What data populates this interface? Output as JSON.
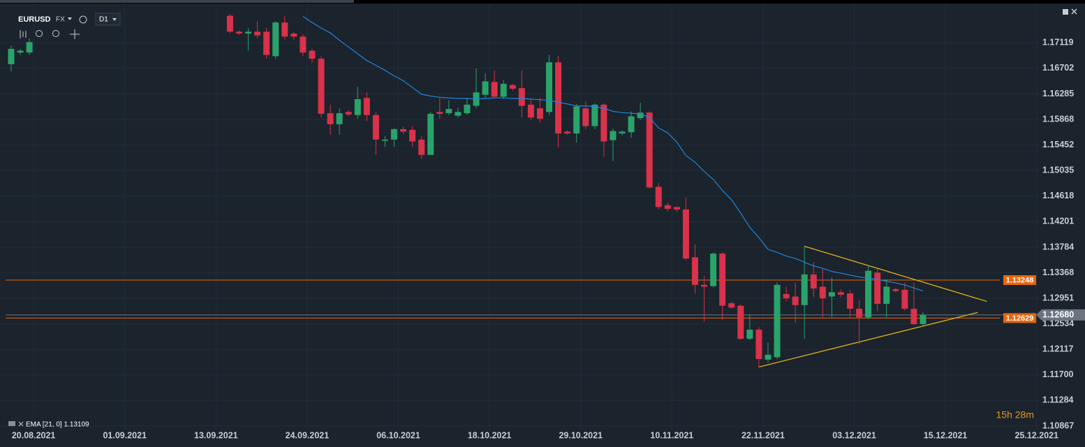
{
  "toolbar": {
    "symbol": "EURUSD",
    "market": "FX",
    "timeframe": "D1"
  },
  "chart_data": {
    "type": "candlestick",
    "categories": [
      null,
      null,
      "20.08.2021",
      null,
      null,
      null,
      null,
      null,
      null,
      null,
      null,
      null,
      "01.09.2021",
      null,
      null,
      null,
      null,
      null,
      null,
      null,
      null,
      null,
      "13.09.2021",
      null,
      null,
      null,
      null,
      null,
      null,
      null,
      null,
      null,
      "24.09.2021",
      null,
      null,
      null,
      null,
      null,
      null,
      null,
      null,
      null,
      "06.10.2021",
      null,
      null,
      null,
      null,
      null,
      null,
      null,
      null,
      null,
      "18.10.2021",
      null,
      null,
      null,
      null,
      null,
      null,
      null,
      null,
      null,
      "29.10.2021",
      null,
      null,
      null,
      null,
      null,
      null,
      null,
      null,
      null,
      "10.11.2021",
      null,
      null,
      null,
      null,
      null,
      null,
      null,
      null,
      null,
      "22.11.2021",
      null,
      null,
      null,
      null,
      null,
      null,
      null,
      null,
      null,
      "03.12.2021",
      null,
      null,
      null,
      null,
      null,
      null,
      null,
      null,
      null,
      "15.12.2021",
      null,
      null,
      null,
      null,
      null,
      null,
      null,
      null,
      null,
      "25.12.2021"
    ],
    "open": [
      1.1677,
      1.1696,
      1.1696,
      null,
      null,
      null,
      null,
      null,
      null,
      null,
      null,
      null,
      null,
      null,
      null,
      null,
      null,
      null,
      null,
      null,
      null,
      null,
      null,
      null,
      1.1756,
      1.173,
      1.1727,
      1.173,
      1.173,
      1.169,
      1.1745,
      1.1727,
      1.1722,
      1.1699,
      1.1686,
      1.1597,
      1.1579,
      1.1599,
      1.1594,
      1.1622,
      1.1594,
      1.1552,
      1.1554,
      1.1571,
      1.157,
      1.1554,
      1.1529,
      1.1599,
      1.1597,
      1.1593,
      1.1597,
      1.1609,
      1.1627,
      1.1648,
      1.1624,
      1.1643,
      1.1638,
      1.1611,
      1.1605,
      1.1599,
      1.168,
      1.1567,
      1.1564,
      1.1605,
      1.1576,
      1.1611,
      1.1553,
      1.1564,
      1.1566,
      1.1589,
      1.1598,
      1.1477,
      1.1447,
      1.1444,
      1.144,
      1.1362,
      1.1317,
      1.1315,
      1.1368,
      1.1287,
      1.1283,
      1.1229,
      1.1244,
      1.1195,
      1.1199,
      1.1302,
      1.1298,
      1.1284,
      1.1334,
      1.1314,
      1.1298,
      1.1305,
      1.1303,
      1.1278,
      1.1264,
      1.1337,
      1.1286,
      1.131,
      1.1309,
      1.1278,
      1.1253,
      null,
      null,
      null,
      null,
      null,
      null,
      null,
      null,
      null,
      null,
      null,
      null
    ],
    "high": [
      1.1707,
      1.1702,
      1.1719,
      null,
      null,
      null,
      null,
      null,
      null,
      null,
      null,
      null,
      null,
      null,
      null,
      null,
      null,
      null,
      null,
      null,
      null,
      null,
      null,
      null,
      1.1759,
      1.1732,
      1.1736,
      1.1747,
      1.1736,
      1.1747,
      1.1756,
      1.173,
      1.1726,
      1.1702,
      1.169,
      1.1611,
      1.1605,
      1.1602,
      1.164,
      1.1631,
      1.1599,
      1.156,
      1.1573,
      1.1575,
      1.1576,
      1.156,
      1.1599,
      1.1622,
      1.1618,
      1.1606,
      1.1622,
      1.167,
      1.1662,
      1.1667,
      1.1651,
      1.1645,
      1.1667,
      1.162,
      1.1622,
      1.1692,
      1.169,
      1.1569,
      1.1612,
      1.1616,
      1.1613,
      1.1613,
      1.1572,
      1.1569,
      1.16,
      1.1614,
      1.16,
      1.1483,
      1.1451,
      1.1445,
      1.1459,
      1.1383,
      1.1332,
      1.137,
      1.137,
      1.129,
      1.1285,
      1.1269,
      1.1248,
      1.1223,
      1.1321,
      1.1314,
      1.1321,
      1.1381,
      1.1354,
      1.1343,
      1.1329,
      1.131,
      1.1309,
      1.1292,
      1.1349,
      1.1343,
      1.1326,
      1.1312,
      1.1321,
      1.1321,
      1.1273,
      null,
      null,
      null,
      null,
      null,
      null,
      null,
      null,
      null,
      null,
      null,
      null
    ],
    "low": [
      1.1665,
      1.1692,
      1.1692,
      null,
      null,
      null,
      null,
      null,
      null,
      null,
      null,
      null,
      null,
      null,
      null,
      null,
      null,
      null,
      null,
      null,
      null,
      null,
      null,
      null,
      1.1728,
      1.1725,
      1.1699,
      1.1719,
      1.1686,
      1.1686,
      1.1717,
      1.1717,
      1.169,
      1.1679,
      1.159,
      1.1562,
      1.1562,
      1.1592,
      1.1588,
      1.1584,
      1.1529,
      1.1542,
      1.1542,
      1.1563,
      1.1542,
      1.1522,
      1.1529,
      1.1588,
      1.1594,
      1.159,
      1.1594,
      1.1605,
      1.1622,
      1.1622,
      1.162,
      1.1634,
      1.159,
      1.1586,
      1.1582,
      1.1594,
      1.1541,
      1.1562,
      1.1549,
      1.1571,
      1.1571,
      1.1526,
      1.1519,
      1.1561,
      1.1557,
      1.1586,
      1.1474,
      1.144,
      1.1437,
      1.1436,
      1.1357,
      1.1303,
      1.1257,
      1.1313,
      1.126,
      1.1278,
      1.1227,
      1.1227,
      1.1182,
      1.119,
      1.1196,
      1.129,
      1.1255,
      1.1229,
      1.1297,
      1.1264,
      1.1264,
      1.1297,
      1.1264,
      1.122,
      1.1261,
      1.1274,
      1.1264,
      1.1305,
      1.1275,
      1.1251,
      1.1251,
      null,
      null,
      null,
      null,
      null,
      null,
      null,
      null,
      null,
      null,
      null,
      null
    ],
    "close": [
      1.1702,
      1.1699,
      1.1713,
      null,
      null,
      null,
      null,
      null,
      null,
      null,
      null,
      null,
      null,
      null,
      null,
      null,
      null,
      null,
      null,
      null,
      null,
      null,
      null,
      null,
      1.173,
      1.1727,
      1.173,
      1.1724,
      1.1692,
      1.1745,
      1.1722,
      1.1722,
      1.1696,
      1.1686,
      1.1596,
      1.1579,
      1.1597,
      1.1595,
      1.162,
      1.1594,
      1.1554,
      1.1554,
      1.1571,
      1.1567,
      1.1551,
      1.1529,
      1.1596,
      1.1596,
      1.1604,
      1.1599,
      1.1611,
      1.1631,
      1.1649,
      1.1624,
      1.1645,
      1.1637,
      1.1609,
      1.159,
      1.1588,
      1.168,
      1.1564,
      1.1564,
      1.1608,
      1.1576,
      1.1611,
      1.1551,
      1.1568,
      1.1567,
      1.1592,
      1.1598,
      1.1476,
      1.1444,
      1.1441,
      1.144,
      1.136,
      1.1317,
      1.1314,
      1.1368,
      1.1283,
      1.128,
      1.1229,
      1.1244,
      1.1196,
      1.1203,
      1.1317,
      1.1295,
      1.1284,
      1.1334,
      1.1311,
      1.1295,
      1.1305,
      1.1301,
      1.1278,
      1.1264,
      1.134,
      1.1286,
      1.1314,
      1.1307,
      1.1278,
      1.1253,
      1.1268,
      null,
      null,
      null,
      null,
      null,
      null,
      null,
      null,
      null,
      null,
      null,
      null
    ],
    "up_color": "#2aa36b",
    "down_color": "#d9324a",
    "series": [
      {
        "name": "EMA [21, 0] 1.13109",
        "color": "#1f86e0",
        "values": [
          null,
          null,
          null,
          null,
          null,
          null,
          null,
          null,
          null,
          null,
          null,
          null,
          null,
          null,
          null,
          null,
          null,
          null,
          null,
          null,
          null,
          null,
          null,
          null,
          null,
          null,
          null,
          null,
          null,
          null,
          null,
          null,
          1.1755,
          1.1745,
          1.1736,
          1.1728,
          1.1716,
          1.1705,
          1.1694,
          1.1683,
          1.1675,
          1.1667,
          1.1658,
          1.165,
          1.1639,
          1.1628,
          1.1625,
          1.1623,
          1.1622,
          1.1621,
          1.1621,
          1.162,
          1.1621,
          1.1622,
          1.1622,
          1.1621,
          1.1621,
          1.162,
          1.1619,
          1.1618,
          1.1615,
          1.1612,
          1.1609,
          1.1609,
          1.1608,
          1.1605,
          1.16,
          1.1598,
          1.1597,
          1.1596,
          1.159,
          1.1573,
          1.1565,
          1.155,
          1.1528,
          1.1517,
          1.1502,
          1.1489,
          1.1471,
          1.1456,
          1.1434,
          1.1411,
          1.1394,
          1.1375,
          1.137,
          1.1364,
          1.136,
          1.1354,
          1.1348,
          1.1344,
          1.1339,
          1.1336,
          1.1333,
          1.133,
          1.1328,
          1.1326,
          1.1323,
          1.132,
          1.1317,
          1.1312,
          1.1307,
          null,
          null,
          null,
          null,
          null,
          null,
          null,
          null,
          null,
          null,
          null,
          null
        ]
      }
    ],
    "ylim": [
      1.1081,
      1.1776
    ],
    "yticks": [
      1.17119,
      1.16702,
      1.16285,
      1.15868,
      1.15452,
      1.15035,
      1.14618,
      1.14201,
      1.13784,
      1.13368,
      1.12951,
      1.12534,
      1.12117,
      {
        "value": 1.117,
        "label": "1.11700"
      },
      1.11284,
      1.10867
    ],
    "grid": true,
    "hlines": [
      {
        "value": 1.13248,
        "color": "#e8650c"
      },
      {
        "value": 1.12629,
        "color": "#e8650c"
      }
    ],
    "last_price": {
      "value": 1.1268,
      "label": "1.12680",
      "color": "#6b7480"
    },
    "trendlines": [
      {
        "x": [
          87,
          107
        ],
        "values": [
          1.138,
          1.129
        ],
        "color": "#e0b21c"
      },
      {
        "x": [
          82,
          106
        ],
        "values": [
          1.1183,
          1.1272
        ],
        "color": "#e0b21c"
      }
    ],
    "timer": "15h 28m"
  }
}
